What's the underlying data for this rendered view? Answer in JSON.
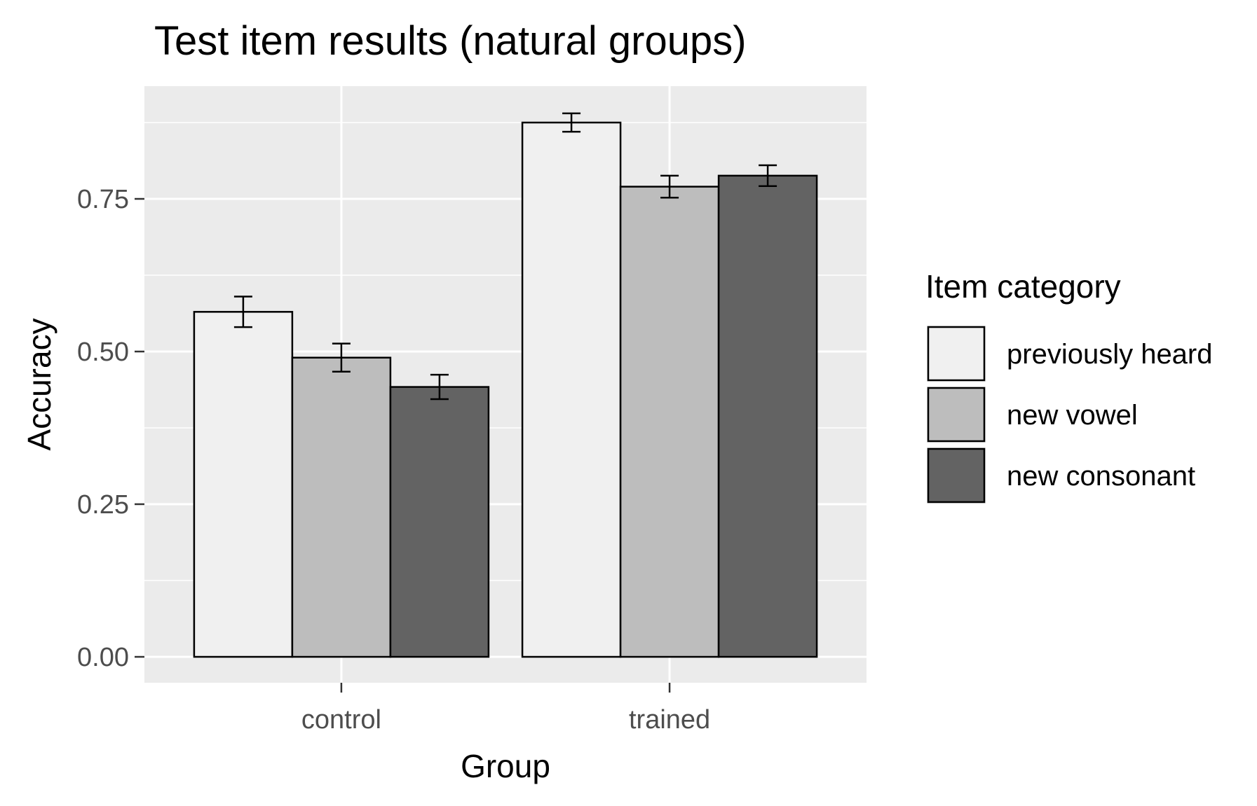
{
  "chart_data": {
    "type": "bar",
    "title": "Test item results (natural groups)",
    "xlabel": "Group",
    "ylabel": "Accuracy",
    "categories": [
      "control",
      "trained"
    ],
    "series": [
      {
        "name": "previously heard",
        "values": [
          0.565,
          0.875
        ],
        "error": [
          0.025,
          0.015
        ],
        "color": "#f0f0f0"
      },
      {
        "name": "new vowel",
        "values": [
          0.49,
          0.77
        ],
        "error": [
          0.023,
          0.018
        ],
        "color": "#bdbdbd"
      },
      {
        "name": "new consonant",
        "values": [
          0.442,
          0.788
        ],
        "error": [
          0.02,
          0.017
        ],
        "color": "#636363"
      }
    ],
    "ylim": [
      0,
      0.93
    ],
    "yticks": [
      0,
      0.25,
      0.5,
      0.75
    ],
    "ytick_labels": [
      "0.00",
      "0.25",
      "0.50",
      "0.75"
    ],
    "grid": true,
    "panel_background": "#ebebeb",
    "legend_title": "Item category",
    "legend_position": "right"
  }
}
